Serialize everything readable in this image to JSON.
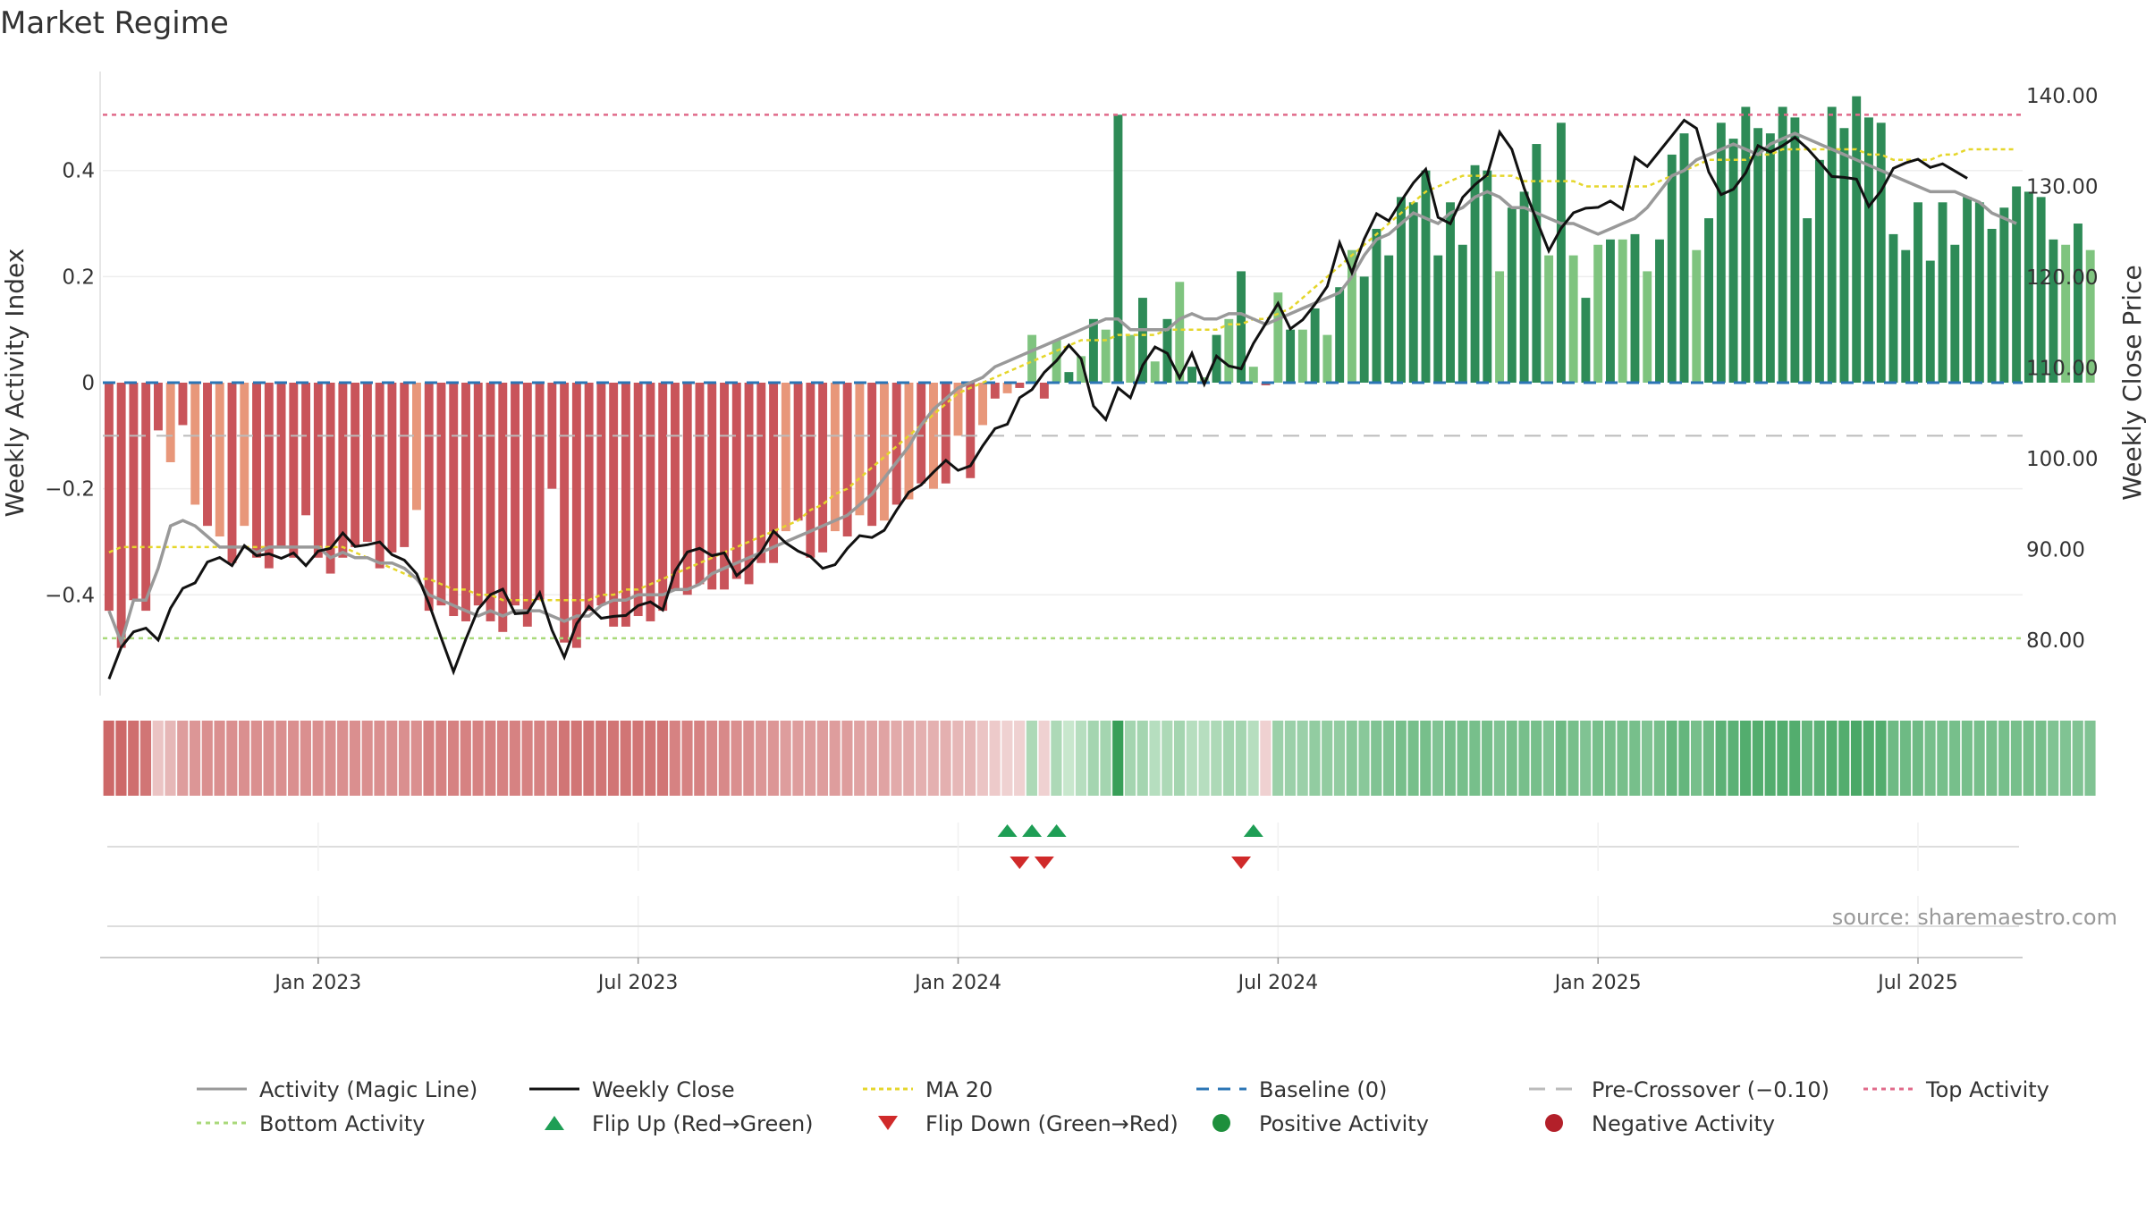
{
  "title": "Market Regime",
  "source": "source: sharemaestro.com",
  "colors": {
    "neg_strong": "#c9545a",
    "neg_light": "#e8977a",
    "pos_strong": "#2e8b57",
    "pos_light": "#7fc47f",
    "magic_line": "#999999",
    "close": "#111111",
    "ma20": "#e5d62b",
    "baseline": "#2b75b5",
    "pre_crossover": "#bbbbbb",
    "top": "#e06a8a",
    "bottom": "#a9d97a",
    "flip_up": "#1e9e55",
    "flip_down": "#d02a2a"
  },
  "legend": {
    "magic_line": "Activity (Magic Line)",
    "weekly_close": "Weekly Close",
    "ma20": "MA 20",
    "baseline": "Baseline (0)",
    "pre_crossover": "Pre-Crossover (−0.10)",
    "top_activity": "Top Activity",
    "bottom_activity": "Bottom Activity",
    "flip_up": "Flip Up (Red→Green)",
    "flip_down": "Flip Down (Green→Red)",
    "positive_activity": "Positive Activity",
    "negative_activity": "Negative Activity"
  },
  "chart_data": {
    "type": "bar",
    "ylabel_left": "Weekly Activity Index",
    "ylabel_right": "Weekly Close Price",
    "ylim_left": [
      -0.59,
      0.59
    ],
    "ylim_right": [
      73.87,
      142.87
    ],
    "y_ticks_left": [
      "0.4",
      "0.2",
      "0",
      "−0.2",
      "−0.4"
    ],
    "y_tick_values_left": [
      0.4,
      0.2,
      0,
      -0.2,
      -0.4
    ],
    "y_ticks_right": [
      "140.00",
      "130.00",
      "120.00",
      "110.00",
      "100.00",
      "90.00",
      "80.00"
    ],
    "y_tick_values_right": [
      140,
      130,
      120,
      110,
      100,
      90,
      80
    ],
    "x_ticks": [
      "Jan 2023",
      "Jul 2023",
      "Jan 2024",
      "Jul 2024",
      "Jan 2025",
      "Jul 2025"
    ],
    "x_tick_weeks": [
      17,
      43,
      69,
      95,
      121,
      147
    ],
    "weeks": 156,
    "reference_lines": {
      "baseline": 0,
      "pre_crossover": -0.1,
      "top_activity": 0.505,
      "bottom_activity": -0.482
    },
    "flip_up_weeks": [
      73,
      75,
      77,
      93
    ],
    "flip_down_weeks": [
      74,
      76,
      92
    ],
    "activity": [
      -0.43,
      -0.5,
      -0.41,
      -0.43,
      -0.09,
      -0.15,
      -0.08,
      -0.23,
      -0.27,
      -0.29,
      -0.34,
      -0.27,
      -0.33,
      -0.35,
      -0.31,
      -0.33,
      -0.25,
      -0.33,
      -0.36,
      -0.33,
      -0.31,
      -0.3,
      -0.35,
      -0.32,
      -0.31,
      -0.24,
      -0.43,
      -0.42,
      -0.44,
      -0.45,
      -0.42,
      -0.45,
      -0.47,
      -0.42,
      -0.46,
      -0.41,
      -0.2,
      -0.49,
      -0.5,
      -0.43,
      -0.42,
      -0.46,
      -0.46,
      -0.44,
      -0.45,
      -0.43,
      -0.39,
      -0.4,
      -0.38,
      -0.39,
      -0.39,
      -0.37,
      -0.38,
      -0.34,
      -0.34,
      -0.28,
      -0.26,
      -0.33,
      -0.32,
      -0.28,
      -0.29,
      -0.25,
      -0.27,
      -0.26,
      -0.23,
      -0.22,
      -0.19,
      -0.2,
      -0.19,
      -0.1,
      -0.18,
      -0.08,
      -0.03,
      -0.02,
      -0.01,
      0.09,
      -0.03,
      0.08,
      0.02,
      0.05,
      0.12,
      0.1,
      0.505,
      0.09,
      0.16,
      0.04,
      0.12,
      0.19,
      0.03,
      0.01,
      0.09,
      0.12,
      0.21,
      0.03,
      -0.005,
      0.17,
      0.1,
      0.1,
      0.14,
      0.09,
      0.18,
      0.25,
      0.2,
      0.29,
      0.24,
      0.35,
      0.34,
      0.4,
      0.24,
      0.34,
      0.26,
      0.41,
      0.4,
      0.21,
      0.33,
      0.36,
      0.45,
      0.24,
      0.49,
      0.24,
      0.16,
      0.26,
      0.27,
      0.27,
      0.28,
      0.21,
      0.27,
      0.43,
      0.47,
      0.25,
      0.31,
      0.49,
      0.46,
      0.52,
      0.48,
      0.47,
      0.52,
      0.5,
      0.31,
      0.42,
      0.52,
      0.48,
      0.54,
      0.5,
      0.49,
      0.28,
      0.25,
      0.34,
      0.23,
      0.34,
      0.26,
      0.35,
      0.34,
      0.29,
      0.33,
      0.37,
      0.36,
      0.35,
      0.27,
      0.26,
      0.3,
      0.25
    ],
    "magic_line": [
      -0.43,
      -0.49,
      -0.41,
      -0.41,
      -0.35,
      -0.27,
      -0.26,
      -0.27,
      -0.29,
      -0.31,
      -0.31,
      -0.31,
      -0.32,
      -0.31,
      -0.31,
      -0.31,
      -0.31,
      -0.31,
      -0.33,
      -0.32,
      -0.33,
      -0.33,
      -0.34,
      -0.34,
      -0.35,
      -0.37,
      -0.4,
      -0.41,
      -0.42,
      -0.43,
      -0.44,
      -0.43,
      -0.44,
      -0.43,
      -0.43,
      -0.43,
      -0.44,
      -0.45,
      -0.44,
      -0.44,
      -0.42,
      -0.41,
      -0.41,
      -0.4,
      -0.4,
      -0.4,
      -0.39,
      -0.39,
      -0.38,
      -0.36,
      -0.35,
      -0.34,
      -0.33,
      -0.32,
      -0.31,
      -0.3,
      -0.29,
      -0.28,
      -0.27,
      -0.26,
      -0.25,
      -0.23,
      -0.21,
      -0.18,
      -0.15,
      -0.12,
      -0.08,
      -0.05,
      -0.03,
      -0.01,
      0.0,
      0.01,
      0.03,
      0.04,
      0.05,
      0.06,
      0.07,
      0.08,
      0.09,
      0.1,
      0.11,
      0.12,
      0.12,
      0.1,
      0.1,
      0.1,
      0.1,
      0.12,
      0.13,
      0.12,
      0.12,
      0.13,
      0.13,
      0.12,
      0.11,
      0.12,
      0.13,
      0.14,
      0.15,
      0.16,
      0.17,
      0.2,
      0.24,
      0.27,
      0.28,
      0.3,
      0.32,
      0.31,
      0.3,
      0.32,
      0.33,
      0.35,
      0.36,
      0.35,
      0.33,
      0.33,
      0.32,
      0.31,
      0.3,
      0.3,
      0.29,
      0.28,
      0.29,
      0.3,
      0.31,
      0.33,
      0.36,
      0.39,
      0.4,
      0.42,
      0.43,
      0.44,
      0.45,
      0.44,
      0.43,
      0.45,
      0.46,
      0.47,
      0.46,
      0.45,
      0.44,
      0.43,
      0.42,
      0.41,
      0.4,
      0.39,
      0.38,
      0.37,
      0.36,
      0.36,
      0.36,
      0.35,
      0.34,
      0.32,
      0.31,
      0.3
    ],
    "weekly_close": [
      75.7,
      79.2,
      80.9,
      81.3,
      80.0,
      83.5,
      85.7,
      86.3,
      88.6,
      89.1,
      88.2,
      90.4,
      89.3,
      89.5,
      89.0,
      89.6,
      88.2,
      89.8,
      90.1,
      91.8,
      90.3,
      90.5,
      90.8,
      89.4,
      88.8,
      87.3,
      84.0,
      80.2,
      76.5,
      80.1,
      83.4,
      85.0,
      85.6,
      82.9,
      83.0,
      85.2,
      81.1,
      78.1,
      81.8,
      83.7,
      82.4,
      82.6,
      82.7,
      83.8,
      84.2,
      83.3,
      87.6,
      89.7,
      90.1,
      89.3,
      89.6,
      87.1,
      88.2,
      89.7,
      92.0,
      90.7,
      89.8,
      89.2,
      87.9,
      88.3,
      90.1,
      91.5,
      91.3,
      92.1,
      94.3,
      96.3,
      97.1,
      98.5,
      99.8,
      98.7,
      99.2,
      101.4,
      103.3,
      103.8,
      106.7,
      107.6,
      109.5,
      110.8,
      112.5,
      111.0,
      105.8,
      104.3,
      107.8,
      106.7,
      110.3,
      112.3,
      111.6,
      108.9,
      111.6,
      108.2,
      111.3,
      110.2,
      109.9,
      112.7,
      114.9,
      117.1,
      114.3,
      115.3,
      117.0,
      119.0,
      123.8,
      120.5,
      124.2,
      127.0,
      126.2,
      128.4,
      130.4,
      131.9,
      126.6,
      125.9,
      128.8,
      130.2,
      131.3,
      136.0,
      134.1,
      129.8,
      126.3,
      122.9,
      125.4,
      127.1,
      127.6,
      127.7,
      128.4,
      127.5,
      133.2,
      132.2,
      133.9,
      135.6,
      137.3,
      136.4,
      131.6,
      129.1,
      129.7,
      131.5,
      134.5,
      133.8,
      134.5,
      135.4,
      134.2,
      132.7,
      131.1,
      131.0,
      130.8,
      127.8,
      129.5,
      132.0,
      132.6,
      133.0,
      132.1,
      132.5,
      131.7,
      130.9
    ],
    "ma20": [
      -0.32,
      -0.31,
      -0.31,
      -0.31,
      -0.31,
      -0.31,
      -0.31,
      -0.31,
      -0.31,
      -0.31,
      -0.31,
      -0.31,
      -0.31,
      -0.31,
      -0.31,
      -0.31,
      -0.31,
      -0.31,
      -0.31,
      -0.31,
      -0.32,
      -0.33,
      -0.34,
      -0.35,
      -0.36,
      -0.37,
      -0.37,
      -0.38,
      -0.39,
      -0.39,
      -0.4,
      -0.4,
      -0.41,
      -0.41,
      -0.41,
      -0.41,
      -0.41,
      -0.41,
      -0.41,
      -0.41,
      -0.4,
      -0.4,
      -0.39,
      -0.39,
      -0.38,
      -0.37,
      -0.36,
      -0.35,
      -0.34,
      -0.33,
      -0.32,
      -0.31,
      -0.3,
      -0.29,
      -0.28,
      -0.27,
      -0.26,
      -0.24,
      -0.23,
      -0.21,
      -0.2,
      -0.18,
      -0.16,
      -0.14,
      -0.12,
      -0.1,
      -0.08,
      -0.06,
      -0.04,
      -0.02,
      -0.01,
      0.0,
      0.01,
      0.02,
      0.03,
      0.04,
      0.05,
      0.06,
      0.07,
      0.08,
      0.08,
      0.08,
      0.09,
      0.09,
      0.09,
      0.09,
      0.1,
      0.1,
      0.1,
      0.1,
      0.1,
      0.11,
      0.11,
      0.12,
      0.12,
      0.13,
      0.14,
      0.16,
      0.18,
      0.2,
      0.22,
      0.24,
      0.26,
      0.28,
      0.3,
      0.32,
      0.34,
      0.36,
      0.37,
      0.38,
      0.39,
      0.39,
      0.39,
      0.39,
      0.39,
      0.38,
      0.38,
      0.38,
      0.38,
      0.38,
      0.37,
      0.37,
      0.37,
      0.37,
      0.37,
      0.37,
      0.38,
      0.39,
      0.4,
      0.41,
      0.42,
      0.42,
      0.42,
      0.42,
      0.43,
      0.43,
      0.44,
      0.44,
      0.44,
      0.44,
      0.44,
      0.44,
      0.44,
      0.43,
      0.43,
      0.42,
      0.42,
      0.42,
      0.42,
      0.43,
      0.43,
      0.44,
      0.44,
      0.44,
      0.44,
      0.44
    ],
    "strip_score": [
      -0.9,
      -0.9,
      -0.85,
      -0.8,
      -0.2,
      -0.3,
      -0.5,
      -0.55,
      -0.6,
      -0.6,
      -0.6,
      -0.6,
      -0.6,
      -0.6,
      -0.6,
      -0.6,
      -0.6,
      -0.6,
      -0.6,
      -0.6,
      -0.6,
      -0.6,
      -0.6,
      -0.6,
      -0.6,
      -0.6,
      -0.7,
      -0.7,
      -0.7,
      -0.7,
      -0.7,
      -0.7,
      -0.7,
      -0.7,
      -0.7,
      -0.7,
      -0.7,
      -0.8,
      -0.8,
      -0.8,
      -0.8,
      -0.8,
      -0.8,
      -0.8,
      -0.8,
      -0.8,
      -0.7,
      -0.7,
      -0.7,
      -0.65,
      -0.65,
      -0.6,
      -0.6,
      -0.55,
      -0.55,
      -0.5,
      -0.5,
      -0.5,
      -0.5,
      -0.5,
      -0.5,
      -0.45,
      -0.45,
      -0.45,
      -0.4,
      -0.4,
      -0.35,
      -0.35,
      -0.35,
      -0.3,
      -0.3,
      -0.2,
      -0.15,
      -0.1,
      -0.1,
      0.3,
      -0.1,
      0.3,
      0.15,
      0.25,
      0.35,
      0.35,
      0.95,
      0.35,
      0.35,
      0.25,
      0.3,
      0.35,
      0.25,
      0.25,
      0.3,
      0.35,
      0.35,
      0.25,
      -0.1,
      0.4,
      0.4,
      0.4,
      0.45,
      0.45,
      0.45,
      0.5,
      0.5,
      0.55,
      0.55,
      0.6,
      0.6,
      0.6,
      0.55,
      0.6,
      0.6,
      0.6,
      0.6,
      0.55,
      0.6,
      0.6,
      0.6,
      0.55,
      0.65,
      0.6,
      0.55,
      0.6,
      0.6,
      0.6,
      0.6,
      0.55,
      0.6,
      0.7,
      0.7,
      0.6,
      0.65,
      0.75,
      0.75,
      0.8,
      0.8,
      0.8,
      0.8,
      0.8,
      0.7,
      0.75,
      0.8,
      0.8,
      0.85,
      0.8,
      0.8,
      0.65,
      0.65,
      0.65,
      0.6,
      0.6,
      0.6,
      0.6,
      0.6,
      0.6,
      0.6,
      0.6,
      0.6,
      0.6,
      0.55,
      0.55,
      0.55,
      0.55
    ]
  }
}
